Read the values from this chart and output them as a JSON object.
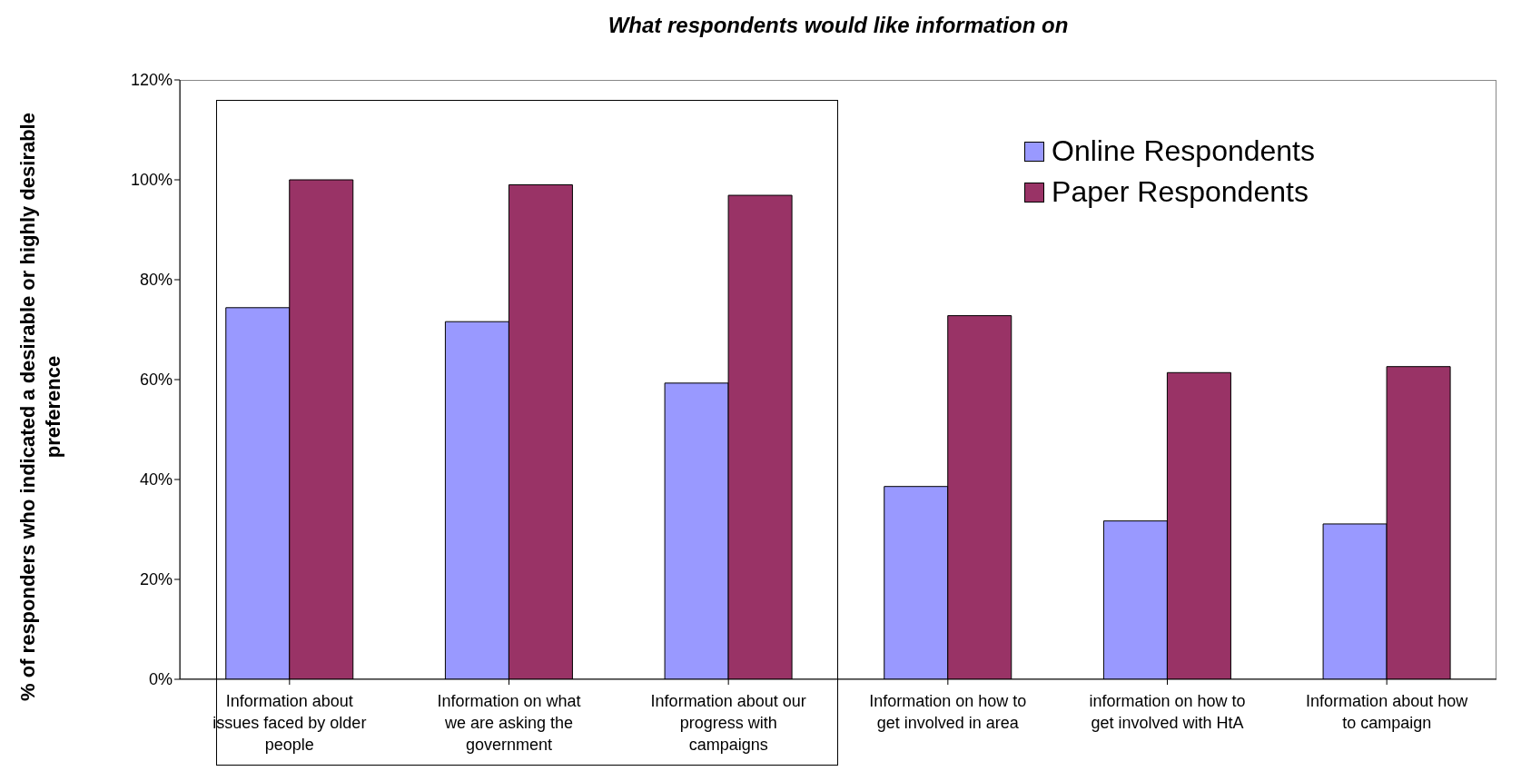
{
  "chart_data": {
    "type": "bar",
    "title": "What respondents would like information on",
    "ylabel": "% of responders who indicated a desirable or highly desirable preference",
    "categories": [
      "Information about issues faced by older people",
      "Information on what we are asking the government",
      "Information about our progress with campaigns",
      "Information on how to get involved in area",
      "information on how to get involved with HtA",
      "Information about how to campaign"
    ],
    "series": [
      {
        "name": "Online Respondents",
        "color": "#9999ff",
        "values": [
          74.4,
          71.6,
          59.3,
          38.6,
          31.7,
          31.1
        ]
      },
      {
        "name": "Paper Respondents",
        "color": "#993366",
        "values": [
          100,
          99,
          96.9,
          72.8,
          61.4,
          62.6
        ]
      }
    ],
    "ylim": [
      0,
      120
    ],
    "yticks": [
      {
        "value": 0,
        "label": "0%"
      },
      {
        "value": 20,
        "label": "20%"
      },
      {
        "value": 40,
        "label": "40%"
      },
      {
        "value": 60,
        "label": "60%"
      },
      {
        "value": 80,
        "label": "80%"
      },
      {
        "value": 100,
        "label": "100%"
      },
      {
        "value": 120,
        "label": "120%"
      }
    ],
    "legend": "top right"
  }
}
